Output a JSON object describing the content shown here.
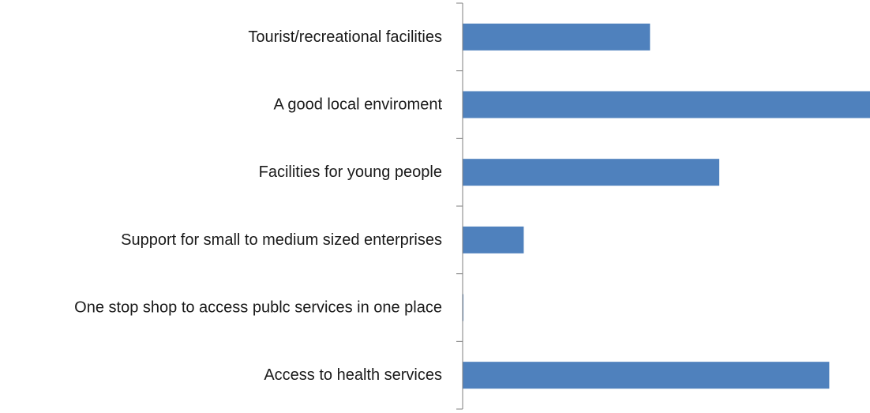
{
  "chart_data": {
    "type": "bar",
    "orientation": "horizontal",
    "categories": [
      "Tourist/recreational facilities",
      "A good local enviroment",
      "Facilities for young people",
      "Support for small to medium sized enterprises",
      "One stop shop to access publc services in one place",
      "Access to health services"
    ],
    "values": [
      46,
      100,
      63,
      15,
      0.2,
      90
    ],
    "title": "",
    "xlabel": "",
    "ylabel": "",
    "xlim": [
      0,
      100
    ],
    "grid": false,
    "legend": "none",
    "bar_color": "#4F81BD",
    "axis_color": "#7f7f7f"
  }
}
